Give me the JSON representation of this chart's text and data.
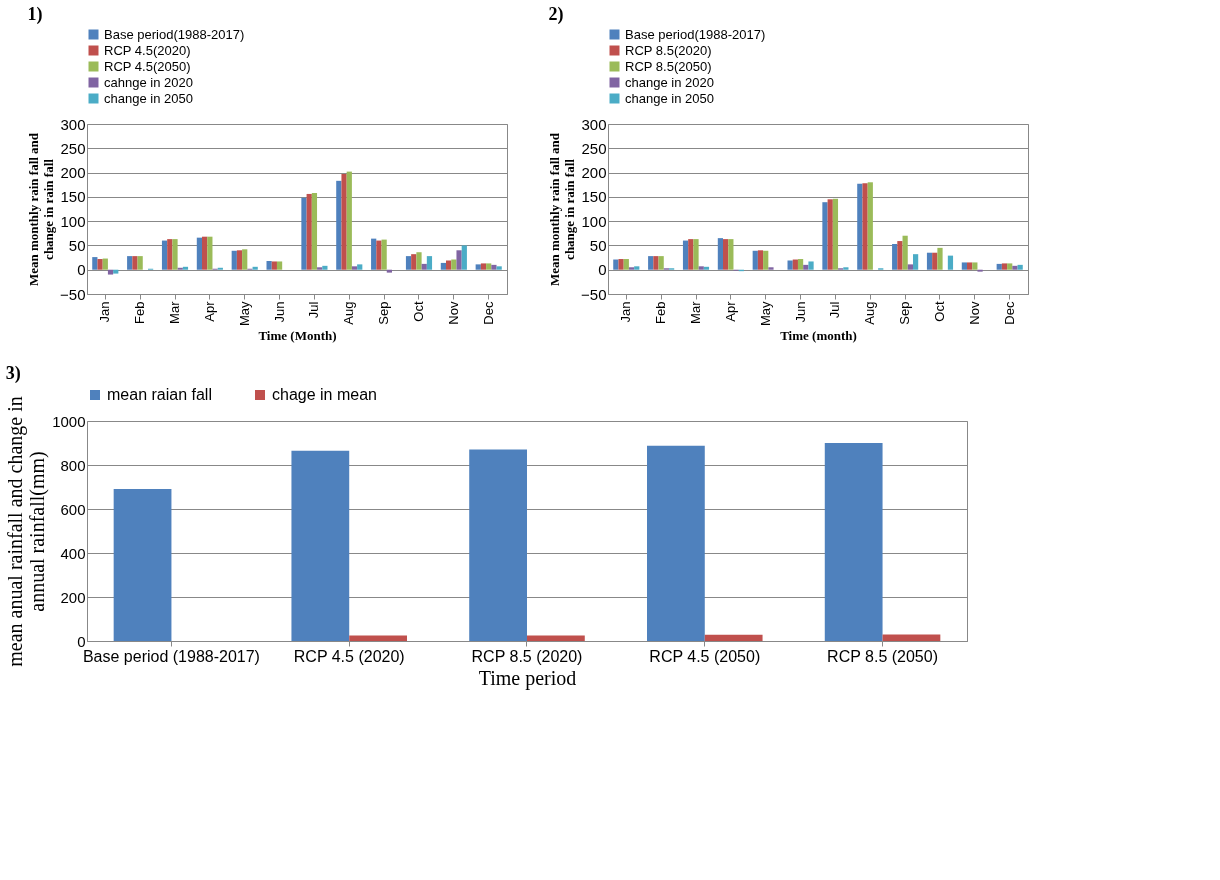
{
  "chart_data": [
    {
      "type": "bar",
      "title": "1)",
      "xlabel": "Time (Month)",
      "ylabel": "Mean monthly rain fall and change in rain fall",
      "categories": [
        "Jan",
        "Feb",
        "Mar",
        "Apr",
        "May",
        "Jun",
        "Jul",
        "Aug",
        "Sep",
        "Oct",
        "Nov",
        "Dec"
      ],
      "ylim": [
        -50,
        300
      ],
      "yticks": [
        -50,
        0,
        50,
        100,
        150,
        200,
        250,
        300
      ],
      "grid": "y",
      "legend": "top",
      "series": [
        {
          "name": "Base period(1988-2017)",
          "color": "#4f81bd",
          "values": [
            26,
            28,
            60,
            66,
            39,
            18,
            148,
            183,
            64,
            28,
            14,
            11
          ]
        },
        {
          "name": "RCP 4.5(2020)",
          "color": "#c0504d",
          "values": [
            22,
            28,
            63,
            68,
            40,
            17,
            156,
            197,
            60,
            32,
            19,
            13
          ]
        },
        {
          "name": "RCP 4.5(2050)",
          "color": "#9bbb59",
          "values": [
            23,
            28,
            63,
            68,
            42,
            17,
            158,
            202,
            62,
            36,
            21,
            13
          ]
        },
        {
          "name": "cahnge in 2020",
          "color": "#8064a2",
          "values": [
            -10,
            0,
            4,
            2,
            2,
            0,
            5,
            7,
            -6,
            12,
            40,
            10
          ]
        },
        {
          "name": "change in 2050",
          "color": "#4bacc6",
          "values": [
            -8,
            2,
            6,
            4,
            6,
            0,
            8,
            11,
            null,
            28,
            50,
            7
          ]
        }
      ]
    },
    {
      "type": "bar",
      "title": "2)",
      "xlabel": "Time (month)",
      "ylabel": "Mean monthly rain fall and change in rain fall",
      "categories": [
        "Jan",
        "Feb",
        "Mar",
        "Apr",
        "May",
        "Jun",
        "Jul",
        "Aug",
        "Sep",
        "Oct",
        "Nov",
        "Dec"
      ],
      "ylim": [
        -50,
        300
      ],
      "yticks": [
        -50,
        0,
        50,
        100,
        150,
        200,
        250,
        300
      ],
      "grid": "y",
      "legend": "top",
      "series": [
        {
          "name": "Base period(1988-2017)",
          "color": "#4f81bd",
          "values": [
            21,
            28,
            60,
            65,
            39,
            19,
            139,
            177,
            53,
            35,
            15,
            12
          ]
        },
        {
          "name": "RCP 8.5(2020)",
          "color": "#c0504d",
          "values": [
            22,
            28,
            63,
            63,
            40,
            21,
            145,
            178,
            59,
            35,
            15,
            13
          ]
        },
        {
          "name": "RCP 8.5(2050)",
          "color": "#9bbb59",
          "values": [
            22,
            28,
            63,
            63,
            39,
            22,
            146,
            180,
            70,
            45,
            15,
            13
          ]
        },
        {
          "name": "change in 2020",
          "color": "#8064a2",
          "values": [
            5,
            3,
            7,
            -2,
            5,
            10,
            3,
            0,
            11,
            0,
            -4,
            8
          ]
        },
        {
          "name": "change in 2050",
          "color": "#4bacc6",
          "values": [
            7,
            3,
            6,
            -3,
            0,
            17,
            5,
            3,
            32,
            29,
            0,
            10
          ]
        }
      ]
    },
    {
      "type": "bar",
      "title": "3)",
      "xlabel": "Time period",
      "ylabel": "mean anual rainfall and change in annual rainfall(mm)",
      "categories": [
        "Base period (1988-2017)",
        "RCP 4.5 (2020)",
        "RCP 8.5 (2020)",
        "RCP 4.5 (2050)",
        "RCP 8.5 (2050)"
      ],
      "ylim": [
        0,
        1000
      ],
      "yticks": [
        0,
        200,
        400,
        600,
        800,
        1000
      ],
      "grid": "y",
      "legend": "top",
      "series": [
        {
          "name": "mean raian fall",
          "color": "#4f81bd",
          "values": [
            691,
            865,
            870,
            887,
            900
          ]
        },
        {
          "name": "chage in mean",
          "color": "#c0504d",
          "values": [
            0,
            25,
            25,
            28,
            30
          ]
        }
      ]
    }
  ]
}
